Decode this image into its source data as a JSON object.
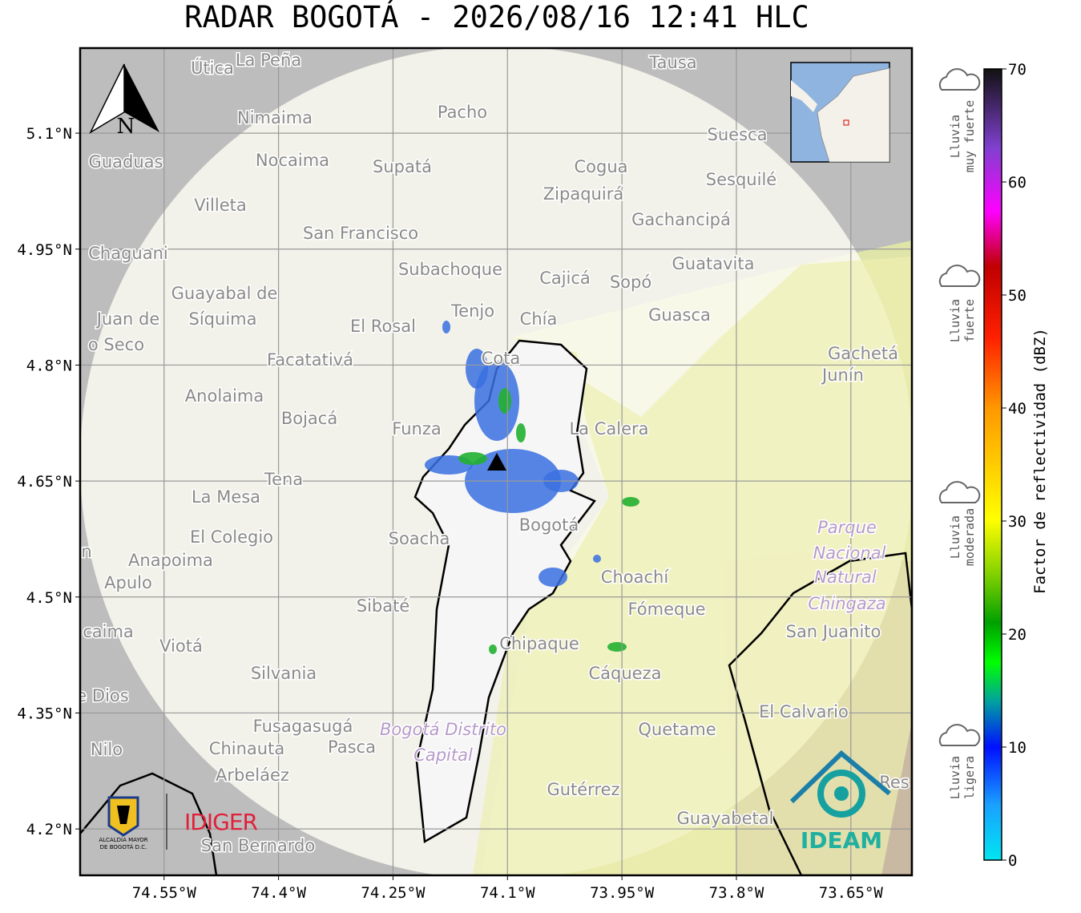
{
  "map": {
    "title": "RADAR BOGOTÁ - 2026/08/16 12:41 HLC",
    "north": "N",
    "latlim": [
      4.14,
      5.21
    ],
    "lonlim": [
      -74.66,
      -73.57
    ],
    "lat_ticks": [
      {
        "value": 5.1,
        "label": "5.1°N"
      },
      {
        "value": 4.95,
        "label": "4.95°N"
      },
      {
        "value": 4.8,
        "label": "4.8°N"
      },
      {
        "value": 4.65,
        "label": "4.65°N"
      },
      {
        "value": 4.5,
        "label": "4.5°N"
      },
      {
        "value": 4.35,
        "label": "4.35°N"
      },
      {
        "value": 4.2,
        "label": "4.2°N"
      }
    ],
    "lon_ticks": [
      {
        "value": -74.55,
        "label": "74.55°W"
      },
      {
        "value": -74.4,
        "label": "74.4°W"
      },
      {
        "value": -74.25,
        "label": "74.25°W"
      },
      {
        "value": -74.1,
        "label": "74.1°W"
      },
      {
        "value": -73.95,
        "label": "73.95°W"
      },
      {
        "value": -73.8,
        "label": "73.8°W"
      },
      {
        "value": -73.65,
        "label": "73.65°W"
      }
    ],
    "places": [
      "Útica",
      "La Peña",
      "Tausa",
      "Pacho",
      "Nimaima",
      "Guaduas",
      "Nocaima",
      "Supatá",
      "Cogua",
      "Suesca",
      "Sesquilé",
      "Zipaquirá",
      "Villeta",
      "Gachancipá",
      "San Francisco",
      "Chaguani",
      "Guatavita",
      "Subachoque",
      "Cajicá",
      "Sopó",
      "Guayabal de",
      "Síquima",
      "Juan de",
      "o Seco",
      "Tenjo",
      "Chía",
      "El Rosal",
      "Guasca",
      "Facatativá",
      "Cota",
      "Gachetá",
      "Junín",
      "Anolaima",
      "Bojacá",
      "Funza",
      "La Calera",
      "Tena",
      "La Mesa",
      "El Colegio",
      "Soacha",
      "Bogotá",
      "Parque",
      "Nacional",
      "Natural",
      "Chingaza",
      "San Juanito",
      "Anapoima",
      "Apulo",
      "Choachí",
      "Sibaté",
      "Fómeque",
      "caima",
      "Viotá",
      "Chipaque",
      "Silvania",
      "Cáqueza",
      "e Dios",
      "El Calvario",
      "Fusagasugá",
      "Bogotá Distrito",
      "Capital",
      "Quetame",
      "Nilo",
      "Chinauta",
      "Pasca",
      "Arbeláez",
      "Gutérrez",
      "Guayabetal",
      "San Bernardo",
      "Res",
      "n"
    ],
    "colorbar": {
      "label": "Factor de reflectividad (dBZ)",
      "lim": [
        0,
        70
      ],
      "ticks": [
        0,
        10,
        20,
        30,
        40,
        50,
        60,
        70
      ]
    },
    "rain_levels": [
      [
        "Lluvia",
        "muy fuerte"
      ],
      [
        "Lluvia",
        "fuerte"
      ],
      [
        "Lluvia",
        "moderada"
      ],
      [
        "Lluvia",
        "ligera"
      ]
    ],
    "logos": {
      "alcaldia": [
        "ALCALDÍA MAYOR",
        "DE BOGOTÁ D.C."
      ],
      "idiger": "IDIGER",
      "ideam": "IDEAM"
    }
  }
}
